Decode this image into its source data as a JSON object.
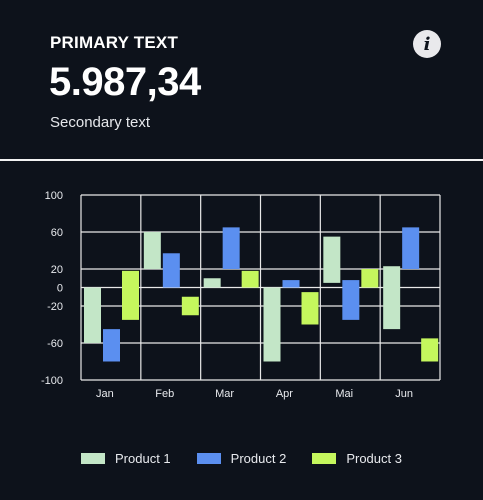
{
  "header": {
    "primary_text": "PRIMARY TEXT",
    "value": "5.987,34",
    "secondary_text": "Secondary text",
    "info_icon": "info-icon"
  },
  "chart_data": {
    "type": "bar",
    "subtype": "floating-range",
    "categories": [
      "Jan",
      "Feb",
      "Mar",
      "Apr",
      "Mai",
      "Jun"
    ],
    "ylim": [
      -100,
      100
    ],
    "yticks": [
      100,
      60,
      20,
      0,
      -20,
      -60,
      -100
    ],
    "grid": true,
    "legend_position": "bottom",
    "series": [
      {
        "name": "Product 1",
        "color": "#c3e6c7",
        "ranges": [
          [
            -60,
            0
          ],
          [
            20,
            60
          ],
          [
            0,
            10
          ],
          [
            -80,
            0
          ],
          [
            5,
            55
          ],
          [
            -45,
            23
          ]
        ]
      },
      {
        "name": "Product 2",
        "color": "#5b8ff0",
        "ranges": [
          [
            -80,
            -45
          ],
          [
            0,
            37
          ],
          [
            20,
            65
          ],
          [
            0,
            8
          ],
          [
            -35,
            8
          ],
          [
            20,
            65
          ]
        ]
      },
      {
        "name": "Product 3",
        "color": "#c5f75d",
        "ranges": [
          [
            -35,
            18
          ],
          [
            -30,
            -10
          ],
          [
            0,
            18
          ],
          [
            -40,
            -5
          ],
          [
            0,
            20
          ],
          [
            -80,
            -55
          ]
        ]
      }
    ]
  }
}
